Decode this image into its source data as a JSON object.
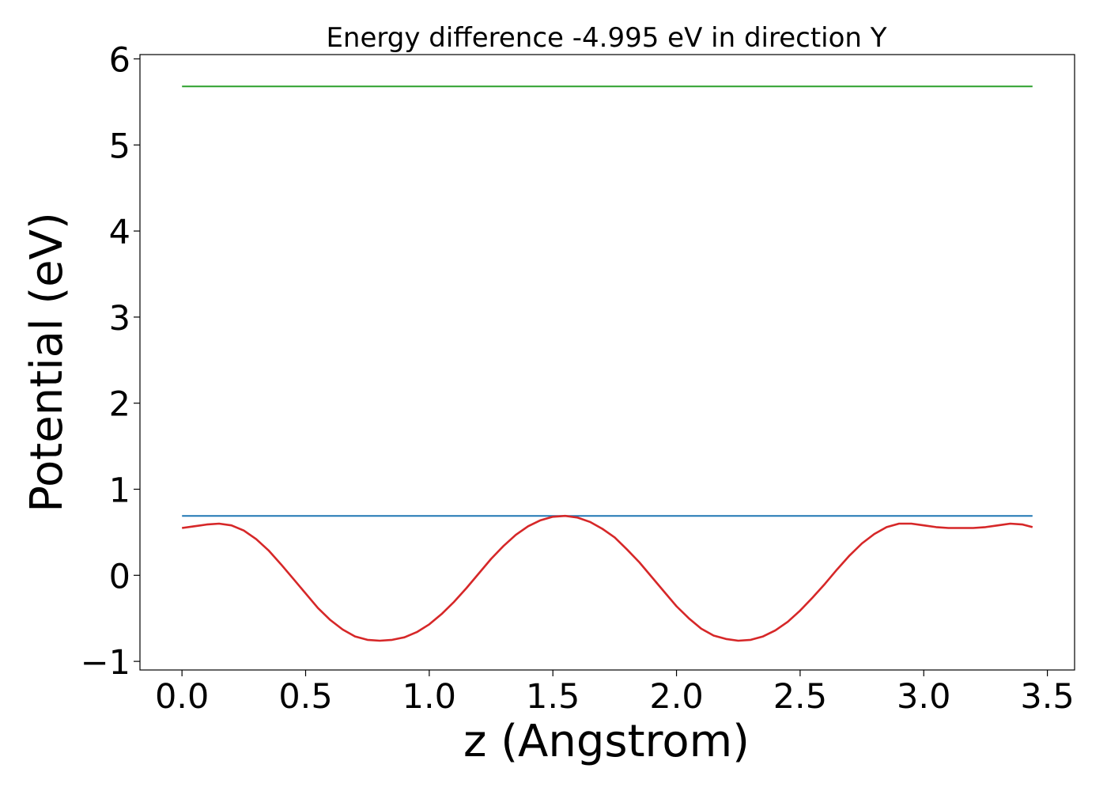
{
  "chart_data": {
    "type": "line",
    "title": "Energy difference -4.995 eV in direction Y",
    "xlabel": "z (Angstrom)",
    "ylabel": "Potential (eV)",
    "xlim": [
      -0.17,
      3.61
    ],
    "ylim": [
      -1.1,
      6.05
    ],
    "xticks": [
      0.0,
      0.5,
      1.0,
      1.5,
      2.0,
      2.5,
      3.0,
      3.5
    ],
    "xtick_labels": [
      "0.0",
      "0.5",
      "1.0",
      "1.5",
      "2.0",
      "2.5",
      "3.0",
      "3.5"
    ],
    "yticks": [
      -1,
      0,
      1,
      2,
      3,
      4,
      5,
      6
    ],
    "ytick_labels": [
      "−1",
      "0",
      "1",
      "2",
      "3",
      "4",
      "5",
      "6"
    ],
    "grid": false,
    "legend": "none",
    "series": [
      {
        "color": "#2ca02c",
        "x": [
          0.0,
          3.44
        ],
        "y": [
          5.68,
          5.68
        ]
      },
      {
        "color": "#1f77b4",
        "x": [
          0.0,
          3.44
        ],
        "y": [
          0.69,
          0.69
        ]
      },
      {
        "color": "#d62728",
        "x": [
          0.0,
          0.05,
          0.1,
          0.15,
          0.2,
          0.25,
          0.3,
          0.35,
          0.4,
          0.45,
          0.5,
          0.55,
          0.6,
          0.65,
          0.7,
          0.75,
          0.8,
          0.85,
          0.9,
          0.95,
          1.0,
          1.05,
          1.1,
          1.15,
          1.2,
          1.25,
          1.3,
          1.35,
          1.4,
          1.45,
          1.5,
          1.55,
          1.6,
          1.65,
          1.7,
          1.75,
          1.8,
          1.85,
          1.9,
          1.95,
          2.0,
          2.05,
          2.1,
          2.15,
          2.2,
          2.25,
          2.3,
          2.35,
          2.4,
          2.45,
          2.5,
          2.55,
          2.6,
          2.65,
          2.7,
          2.75,
          2.8,
          2.85,
          2.9,
          2.95,
          3.0,
          3.05,
          3.1,
          3.15,
          3.2,
          3.25,
          3.3,
          3.35,
          3.4,
          3.44
        ],
        "y": [
          0.55,
          0.57,
          0.59,
          0.6,
          0.58,
          0.52,
          0.42,
          0.29,
          0.13,
          -0.04,
          -0.21,
          -0.38,
          -0.52,
          -0.63,
          -0.71,
          -0.75,
          -0.76,
          -0.75,
          -0.72,
          -0.66,
          -0.57,
          -0.45,
          -0.31,
          -0.15,
          0.02,
          0.19,
          0.34,
          0.47,
          0.57,
          0.64,
          0.68,
          0.69,
          0.67,
          0.62,
          0.54,
          0.44,
          0.3,
          0.15,
          -0.02,
          -0.19,
          -0.36,
          -0.5,
          -0.62,
          -0.7,
          -0.74,
          -0.76,
          -0.75,
          -0.71,
          -0.64,
          -0.54,
          -0.41,
          -0.26,
          -0.1,
          0.07,
          0.23,
          0.37,
          0.48,
          0.56,
          0.6,
          0.6,
          0.58,
          0.56,
          0.55,
          0.55,
          0.55,
          0.56,
          0.58,
          0.6,
          0.59,
          0.56
        ]
      }
    ]
  }
}
